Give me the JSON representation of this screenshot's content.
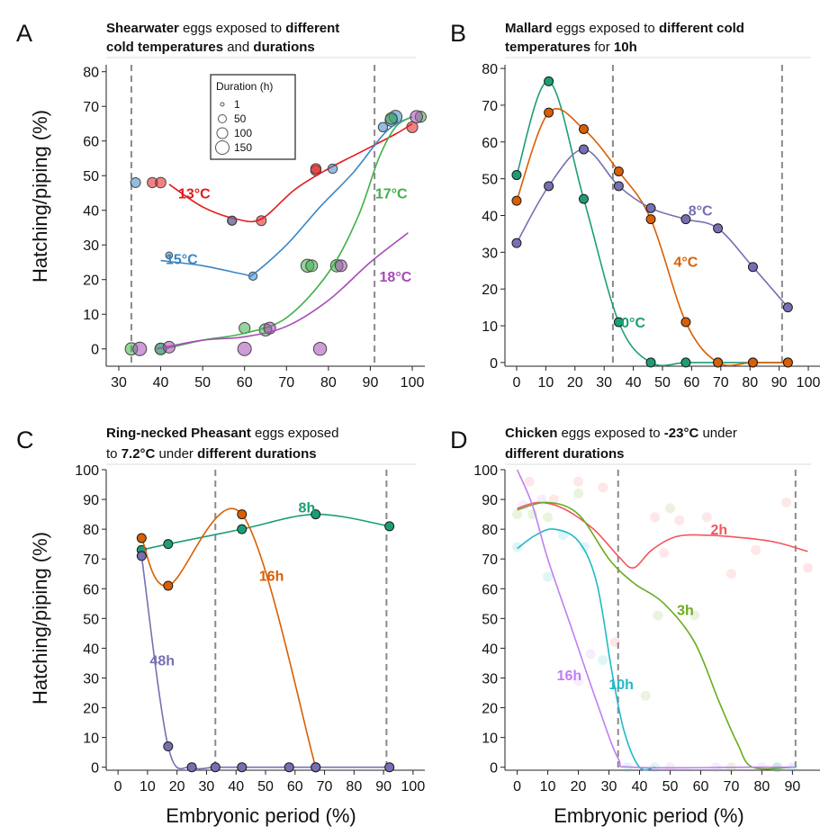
{
  "y_axis_label": "Hatching/piping (%)",
  "x_axis_label": "Embryonic period (%)",
  "chart_data": [
    {
      "panel": "A",
      "type": "scatter",
      "title_parts": [
        {
          "text": "Shearwater",
          "bold": true
        },
        {
          "text": " eggs exposed to ",
          "bold": false
        },
        {
          "text": "different",
          "bold": true
        },
        {
          "text": "|"
        },
        {
          "text": "cold temperatures",
          "bold": true
        },
        {
          "text": " and ",
          "bold": false
        },
        {
          "text": "durations",
          "bold": true
        }
      ],
      "xlim": [
        27,
        103
      ],
      "ylim": [
        -5,
        82
      ],
      "xticks": [
        30,
        40,
        50,
        60,
        70,
        80,
        90,
        100
      ],
      "yticks": [
        0,
        10,
        20,
        30,
        40,
        50,
        60,
        70,
        80
      ],
      "vlines": [
        33,
        91
      ],
      "legend": {
        "title": "Duration (h)",
        "entries": [
          "1",
          "50",
          "100",
          "150"
        ],
        "placement": "top-center"
      },
      "series": [
        {
          "name": "13°C",
          "color": "#e31a1c",
          "label_at": [
            48,
            45
          ],
          "curve": [
            [
              42,
              47.5
            ],
            [
              50,
              41
            ],
            [
              58,
              37.5
            ],
            [
              64,
              37.5
            ],
            [
              72,
              46
            ],
            [
              80,
              52
            ],
            [
              88,
              57
            ],
            [
              96,
              62
            ],
            [
              100,
              65
            ]
          ],
          "points": [
            [
              38,
              48,
              20
            ],
            [
              40,
              48,
              22
            ],
            [
              57,
              37,
              15
            ],
            [
              64,
              37,
              18
            ],
            [
              77,
              51.5,
              20
            ],
            [
              77,
              52,
              20
            ],
            [
              100,
              64,
              25
            ]
          ]
        },
        {
          "name": "15°C",
          "color": "#3a86c4",
          "label_at": [
            45,
            26
          ],
          "curve": [
            [
              40,
              25.5
            ],
            [
              50,
              24
            ],
            [
              60,
              21.5
            ],
            [
              62,
              21.5
            ],
            [
              70,
              30
            ],
            [
              78,
              41
            ],
            [
              86,
              51
            ],
            [
              94,
              63
            ],
            [
              100,
              67
            ]
          ],
          "points": [
            [
              34,
              48,
              18
            ],
            [
              40,
              0,
              25
            ],
            [
              42,
              27,
              5
            ],
            [
              57,
              37,
              12
            ],
            [
              62,
              21,
              10
            ],
            [
              81,
              52,
              15
            ],
            [
              93,
              64,
              15
            ],
            [
              95,
              66,
              35
            ],
            [
              96,
              67,
              40
            ]
          ]
        },
        {
          "name": "17°C",
          "color": "#3fb04a",
          "label_at": [
            95,
            45
          ],
          "curve": [
            [
              41,
              0
            ],
            [
              50,
              2.5
            ],
            [
              60,
              4.5
            ],
            [
              70,
              9
            ],
            [
              80,
              22
            ],
            [
              87,
              38
            ],
            [
              92,
              55
            ],
            [
              96,
              64
            ],
            [
              100,
              67
            ]
          ],
          "points": [
            [
              33,
              0,
              35
            ],
            [
              40,
              0,
              30
            ],
            [
              60,
              6,
              25
            ],
            [
              65,
              5.5,
              35
            ],
            [
              75,
              24,
              40
            ],
            [
              76,
              24,
              30
            ],
            [
              82,
              24,
              35
            ],
            [
              95,
              66.5,
              30
            ],
            [
              102,
              67,
              25
            ]
          ]
        },
        {
          "name": "18°C",
          "color": "#a64ab5",
          "label_at": [
            96,
            21
          ],
          "curve": [
            [
              39,
              0
            ],
            [
              50,
              2.5
            ],
            [
              60,
              3.5
            ],
            [
              70,
              6.5
            ],
            [
              80,
              14
            ],
            [
              90,
              25
            ],
            [
              99,
              33.5
            ]
          ],
          "points": [
            [
              35,
              0,
              45
            ],
            [
              42,
              0.5,
              30
            ],
            [
              60,
              0,
              45
            ],
            [
              66,
              6,
              30
            ],
            [
              78,
              0,
              40
            ],
            [
              83,
              24,
              30
            ],
            [
              101,
              67,
              35
            ]
          ]
        }
      ]
    },
    {
      "panel": "B",
      "type": "line",
      "title_parts": [
        {
          "text": "Mallard",
          "bold": true
        },
        {
          "text": " eggs exposed to ",
          "bold": false
        },
        {
          "text": "different cold",
          "bold": true
        },
        {
          "text": "|"
        },
        {
          "text": "temperatures",
          "bold": true
        },
        {
          "text": " for ",
          "bold": false
        },
        {
          "text": "10h",
          "bold": true
        }
      ],
      "xlim": [
        -4,
        104
      ],
      "ylim": [
        -1,
        81
      ],
      "xticks": [
        0,
        10,
        20,
        30,
        40,
        50,
        60,
        70,
        80,
        90,
        100
      ],
      "yticks": [
        0,
        10,
        20,
        30,
        40,
        50,
        60,
        70,
        80
      ],
      "vlines": [
        33,
        91
      ],
      "series": [
        {
          "name": "0°C",
          "color": "#1b9e77",
          "label_at": [
            40,
            11
          ],
          "x": [
            0,
            11,
            23,
            35,
            46,
            58,
            69,
            81,
            93
          ],
          "y": [
            51,
            76.5,
            44.5,
            11,
            0,
            0,
            0,
            0,
            0
          ]
        },
        {
          "name": "4°C",
          "color": "#d95f02",
          "label_at": [
            58,
            27.5
          ],
          "x": [
            0,
            11,
            23,
            35,
            46,
            58,
            69,
            81,
            93
          ],
          "y": [
            44,
            68,
            63.5,
            52,
            39,
            11,
            0,
            0,
            0
          ]
        },
        {
          "name": "8°C",
          "color": "#7570b3",
          "label_at": [
            63,
            41.5
          ],
          "x": [
            0,
            11,
            23,
            35,
            46,
            58,
            69,
            81,
            93
          ],
          "y": [
            32.5,
            48,
            58,
            48,
            42,
            39,
            36.5,
            26,
            15
          ]
        }
      ]
    },
    {
      "panel": "C",
      "type": "line",
      "title_parts": [
        {
          "text": "Ring-necked Pheasant",
          "bold": true
        },
        {
          "text": " eggs exposed",
          "bold": false
        },
        {
          "text": "|"
        },
        {
          "text": "to ",
          "bold": false
        },
        {
          "text": "7.2°C",
          "bold": true
        },
        {
          "text": " under ",
          "bold": false
        },
        {
          "text": "different durations",
          "bold": true
        }
      ],
      "xlim": [
        -4,
        104
      ],
      "ylim": [
        -1,
        100
      ],
      "xticks": [
        0,
        10,
        20,
        30,
        40,
        50,
        60,
        70,
        80,
        90,
        100
      ],
      "yticks": [
        0,
        10,
        20,
        30,
        40,
        50,
        60,
        70,
        80,
        90,
        100
      ],
      "vlines": [
        33,
        91
      ],
      "series": [
        {
          "name": "8h",
          "color": "#1b9e77",
          "label_at": [
            64,
            87.5
          ],
          "x": [
            8,
            17,
            42,
            67,
            92
          ],
          "y": [
            73,
            75,
            80,
            85,
            81
          ]
        },
        {
          "name": "16h",
          "color": "#d95f02",
          "label_at": [
            52,
            64.5
          ],
          "x": [
            8,
            17,
            42,
            67
          ],
          "y": [
            77,
            61,
            85,
            0
          ]
        },
        {
          "name": "48h",
          "color": "#7570b3",
          "label_at": [
            15,
            36
          ],
          "x": [
            8,
            17,
            25,
            33,
            42,
            58,
            67,
            92
          ],
          "y": [
            71,
            7,
            0,
            0,
            0,
            0,
            0,
            0
          ]
        }
      ]
    },
    {
      "panel": "D",
      "type": "line",
      "title_parts": [
        {
          "text": "Chicken",
          "bold": true
        },
        {
          "text": " eggs exposed to ",
          "bold": false
        },
        {
          "text": "-23°C",
          "bold": true
        },
        {
          "text": " under",
          "bold": false
        },
        {
          "text": "|"
        },
        {
          "text": "different durations",
          "bold": true
        }
      ],
      "xlim": [
        -4,
        99
      ],
      "ylim": [
        -1,
        100
      ],
      "xticks": [
        0,
        10,
        20,
        30,
        40,
        50,
        60,
        70,
        80,
        90
      ],
      "yticks": [
        0,
        10,
        20,
        30,
        40,
        50,
        60,
        70,
        80,
        90,
        100
      ],
      "vlines": [
        33,
        91
      ],
      "series": [
        {
          "name": "2h",
          "color": "#f2555f",
          "label_at": [
            66,
            80
          ],
          "curve": [
            [
              0,
              87
            ],
            [
              7,
              89
            ],
            [
              15,
              87
            ],
            [
              25,
              80
            ],
            [
              33,
              71
            ],
            [
              38,
              67
            ],
            [
              44,
              73
            ],
            [
              52,
              77.5
            ],
            [
              62,
              78
            ],
            [
              75,
              77
            ],
            [
              85,
              75.5
            ],
            [
              95,
              72.5
            ]
          ],
          "points": [
            [
              4,
              96
            ],
            [
              12,
              90
            ],
            [
              20,
              96
            ],
            [
              28,
              94
            ],
            [
              32,
              42
            ],
            [
              45,
              84
            ],
            [
              48,
              72
            ],
            [
              53,
              83
            ],
            [
              62,
              84
            ],
            [
              70,
              65
            ],
            [
              78,
              73
            ],
            [
              88,
              89
            ],
            [
              95,
              67
            ]
          ]
        },
        {
          "name": "3h",
          "color": "#6aac1e",
          "label_at": [
            55,
            53
          ],
          "curve": [
            [
              0,
              86.5
            ],
            [
              10,
              89
            ],
            [
              20,
              85
            ],
            [
              30,
              70
            ],
            [
              38,
              62
            ],
            [
              48,
              55
            ],
            [
              58,
              42
            ],
            [
              66,
              22
            ],
            [
              72,
              8
            ],
            [
              77,
              0
            ],
            [
              90,
              0
            ]
          ],
          "points": [
            [
              0,
              85
            ],
            [
              5,
              85
            ],
            [
              10,
              84
            ],
            [
              20,
              92
            ],
            [
              42,
              24
            ],
            [
              46,
              51
            ],
            [
              50,
              87
            ],
            [
              58,
              51
            ],
            [
              70,
              0
            ],
            [
              85,
              0
            ]
          ]
        },
        {
          "name": "10h",
          "color": "#1fbac8",
          "label_at": [
            34,
            28
          ],
          "curve": [
            [
              0,
              73.5
            ],
            [
              6,
              78
            ],
            [
              12,
              80
            ],
            [
              20,
              76
            ],
            [
              26,
              62
            ],
            [
              31,
              32
            ],
            [
              35,
              12
            ],
            [
              40,
              0
            ],
            [
              45,
              0
            ]
          ],
          "points": [
            [
              0,
              74
            ],
            [
              10,
              64
            ],
            [
              15,
              78
            ],
            [
              22,
              74
            ],
            [
              28,
              36
            ],
            [
              36,
              0
            ],
            [
              45,
              0
            ],
            [
              85,
              0
            ],
            [
              90,
              0
            ]
          ]
        },
        {
          "name": "16h",
          "color": "#c07ef0",
          "label_at": [
            17,
            31
          ],
          "curve": [
            [
              0,
              100
            ],
            [
              5,
              88
            ],
            [
              10,
              70
            ],
            [
              18,
              46
            ],
            [
              26,
              22
            ],
            [
              33,
              3
            ],
            [
              38,
              0
            ],
            [
              75,
              0
            ],
            [
              91,
              0
            ]
          ],
          "points": [
            [
              2,
              88
            ],
            [
              8,
              90
            ],
            [
              20,
              29
            ],
            [
              24,
              38
            ],
            [
              50,
              0
            ],
            [
              65,
              0
            ],
            [
              80,
              0
            ]
          ]
        }
      ]
    }
  ]
}
